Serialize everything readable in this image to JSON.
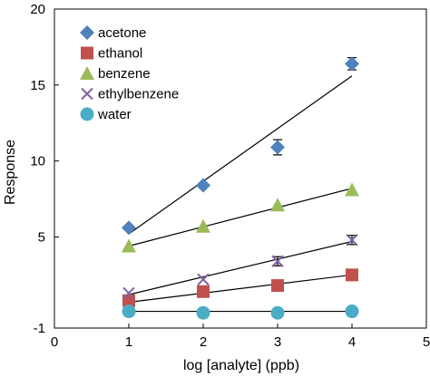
{
  "chart_data": {
    "type": "scatter",
    "xlabel": "log [analyte] (ppb)",
    "ylabel": "Response",
    "xlim": [
      0,
      5
    ],
    "ylim": [
      -1,
      20
    ],
    "xticks": [
      "0",
      "1",
      "2",
      "3",
      "4",
      "5"
    ],
    "yticks": [
      {
        "value": 20,
        "label": "20"
      },
      {
        "value": 15,
        "label": "15"
      },
      {
        "value": 10,
        "label": "10"
      },
      {
        "value": 5,
        "label": "5"
      },
      {
        "value": -1,
        "label": "-1"
      }
    ],
    "legend_position": "top-left",
    "grid": false,
    "series": [
      {
        "name": "acetone",
        "marker": "diamond",
        "color": "#4f81bd",
        "x": [
          1,
          2,
          3,
          4
        ],
        "y": [
          5.6,
          8.4,
          10.9,
          16.4
        ],
        "err": [
          0,
          0,
          0.5,
          0.4
        ],
        "fit": [
          5.2,
          15.6
        ]
      },
      {
        "name": "ethanol",
        "marker": "square",
        "color": "#c0504d",
        "x": [
          1,
          2,
          3,
          4
        ],
        "y": [
          0.8,
          1.4,
          1.8,
          2.5
        ],
        "err": [
          0,
          0,
          0,
          0
        ],
        "fit": [
          0.7,
          2.5
        ]
      },
      {
        "name": "benzene",
        "marker": "triangle",
        "color": "#9bbb59",
        "x": [
          1,
          2,
          3,
          4
        ],
        "y": [
          4.4,
          5.7,
          7.1,
          8.1
        ],
        "err": [
          0,
          0,
          0,
          0
        ],
        "fit": [
          4.4,
          8.2
        ]
      },
      {
        "name": "ethylbenzene",
        "marker": "x",
        "color": "#8064a2",
        "x": [
          1,
          2,
          3,
          4
        ],
        "y": [
          1.3,
          2.2,
          3.4,
          4.8
        ],
        "err": [
          0,
          0,
          0.3,
          0.3
        ],
        "fit": [
          1.2,
          4.7
        ]
      },
      {
        "name": "water",
        "marker": "circle",
        "color": "#4bacc6",
        "x": [
          1,
          2,
          3,
          4
        ],
        "y": [
          0.1,
          0.0,
          0.0,
          0.1
        ],
        "err": [
          0,
          0,
          0,
          0
        ],
        "fit": [
          0.1,
          0.1
        ]
      }
    ]
  }
}
